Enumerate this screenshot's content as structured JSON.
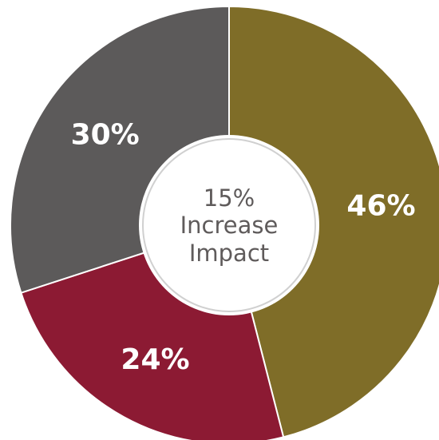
{
  "chart_data": {
    "type": "pie",
    "variant": "donut",
    "slices": [
      {
        "label": "46%",
        "value": 46,
        "color": "#7f6d28"
      },
      {
        "label": "24%",
        "value": 24,
        "color": "#8c1a33"
      },
      {
        "label": "30%",
        "value": 30,
        "color": "#5c5a5a"
      }
    ],
    "center_text": {
      "value": "15%",
      "line1": "Increase",
      "line2": "Impact"
    }
  }
}
